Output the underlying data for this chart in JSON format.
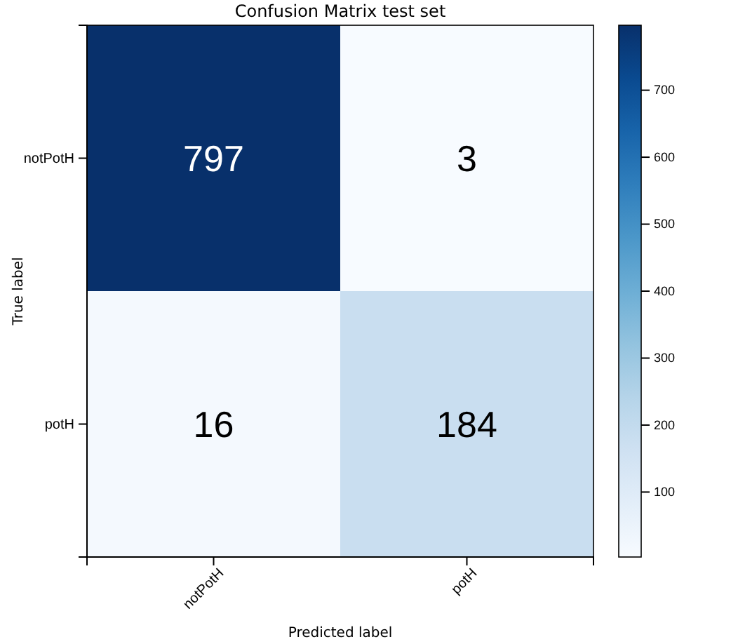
{
  "chart_data": {
    "type": "heatmap",
    "title": "Confusion Matrix test set",
    "xlabel": "Predicted label",
    "ylabel": "True label",
    "categories": [
      "notPotH",
      "potH"
    ],
    "y_categories": [
      "notPotH",
      "potH"
    ],
    "cells": [
      [
        797,
        3
      ],
      [
        16,
        184
      ]
    ],
    "clim": [
      3,
      797
    ],
    "cticks": [
      100,
      200,
      300,
      400,
      500,
      600,
      700
    ],
    "data_labels": true
  }
}
